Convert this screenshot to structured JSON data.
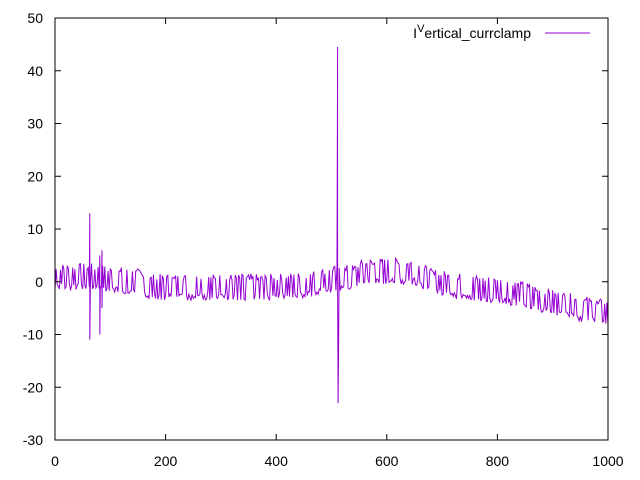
{
  "chart_data": {
    "type": "line",
    "title": "",
    "xlabel": "",
    "ylabel": "",
    "xlim": [
      0,
      1000
    ],
    "ylim": [
      -30,
      50
    ],
    "x_ticks": [
      0,
      200,
      400,
      600,
      800,
      1000
    ],
    "y_ticks": [
      -30,
      -20,
      -10,
      0,
      10,
      20,
      30,
      40,
      50
    ],
    "x_tick_labels": [
      "0",
      "200",
      "400",
      "600",
      "800",
      "1000"
    ],
    "y_tick_labels": [
      "-30",
      "-20",
      "-10",
      "0",
      "10",
      "20",
      "30",
      "40",
      "50"
    ],
    "grid": false,
    "legend_position": "top-right",
    "series": [
      {
        "name_prefix": "I",
        "name_superscript": "V",
        "name_suffix": "ertical_currclamp",
        "color": "#9400d3",
        "noise_amplitude": 2.5,
        "baseline": [
          [
            0,
            1
          ],
          [
            60,
            1
          ],
          [
            70,
            1
          ],
          [
            100,
            0.5
          ],
          [
            150,
            0
          ],
          [
            170,
            -1
          ],
          [
            250,
            -1
          ],
          [
            320,
            -1
          ],
          [
            400,
            -1
          ],
          [
            460,
            -0.5
          ],
          [
            480,
            0
          ],
          [
            500,
            0.5
          ],
          [
            540,
            0.8
          ],
          [
            560,
            2
          ],
          [
            600,
            2
          ],
          [
            650,
            2
          ],
          [
            680,
            0
          ],
          [
            740,
            -1
          ],
          [
            800,
            -1.5
          ],
          [
            850,
            -2.5
          ],
          [
            900,
            -4
          ],
          [
            950,
            -5
          ],
          [
            1000,
            -6
          ]
        ],
        "spikes": [
          {
            "x": 63,
            "y_max": 13,
            "y_min": -11
          },
          {
            "x": 81,
            "y_max": 5,
            "y_min": -10
          },
          {
            "x": 85,
            "y_max": 6,
            "y_min": -5
          },
          {
            "x": 511,
            "y_max": 44.5,
            "y_min": 0
          },
          {
            "x": 512,
            "y_max": 0,
            "y_min": -23
          }
        ]
      }
    ]
  }
}
